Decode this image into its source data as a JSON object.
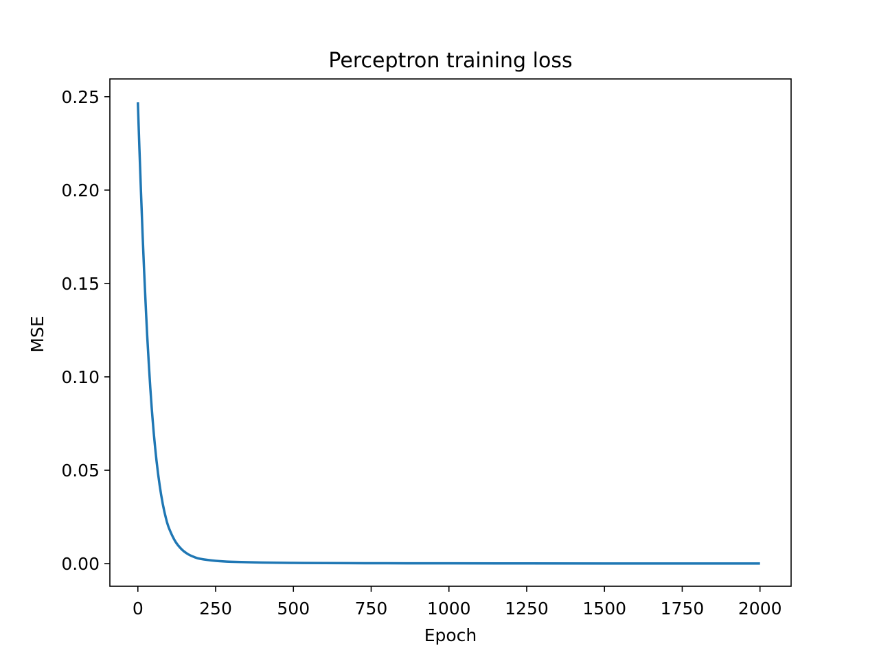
{
  "chart_data": {
    "type": "line",
    "title": "Perceptron training loss",
    "xlabel": "Epoch",
    "ylabel": "MSE",
    "xlim": [
      -90,
      2100
    ],
    "ylim": [
      -0.0121,
      0.2595
    ],
    "xticks": [
      0,
      250,
      500,
      750,
      1000,
      1250,
      1500,
      1750,
      2000
    ],
    "xtick_labels": [
      "0",
      "250",
      "500",
      "750",
      "1000",
      "1250",
      "1500",
      "1750",
      "2000"
    ],
    "yticks": [
      0.0,
      0.05,
      0.1,
      0.15,
      0.2,
      0.25
    ],
    "ytick_labels": [
      "0.00",
      "0.05",
      "0.10",
      "0.15",
      "0.20",
      "0.25"
    ],
    "grid": false,
    "series": [
      {
        "name": "MSE",
        "color": "#1f77b4",
        "x": [
          0,
          5,
          10,
          15,
          20,
          25,
          30,
          40,
          50,
          60,
          70,
          80,
          90,
          100,
          120,
          140,
          160,
          180,
          200,
          250,
          300,
          400,
          500,
          600,
          800,
          1000,
          1250,
          1500,
          1750,
          2000
        ],
        "y": [
          0.247,
          0.222,
          0.199,
          0.177,
          0.157,
          0.139,
          0.122,
          0.094,
          0.072,
          0.055,
          0.042,
          0.032,
          0.0245,
          0.019,
          0.012,
          0.0078,
          0.0052,
          0.0036,
          0.0026,
          0.0015,
          0.001,
          0.0006,
          0.0004,
          0.0003,
          0.0002,
          0.00015,
          0.0001,
          8e-05,
          7e-05,
          6e-05
        ]
      }
    ]
  }
}
